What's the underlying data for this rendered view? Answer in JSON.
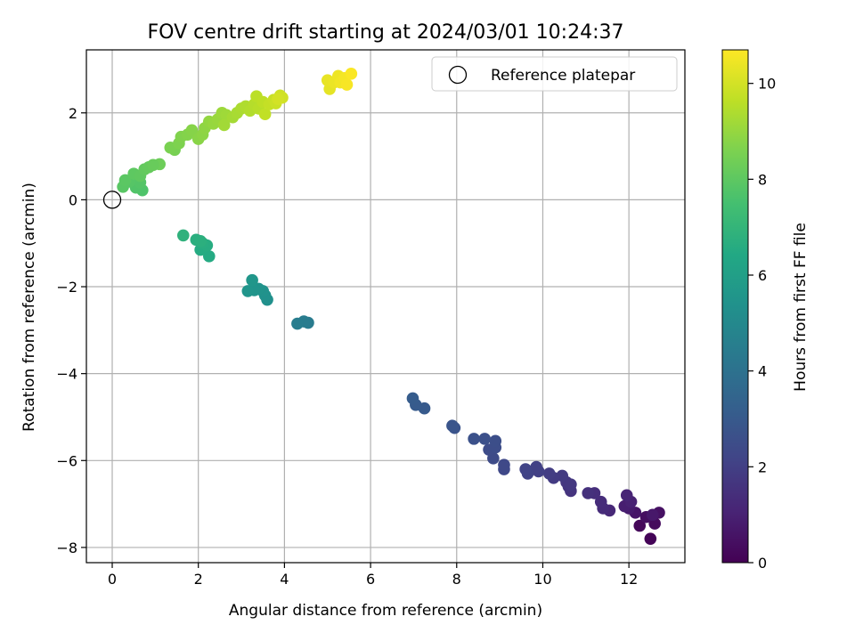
{
  "chart_data": {
    "type": "scatter",
    "title": "FOV centre drift starting at 2024/03/01 10:24:37",
    "xlabel": "Angular distance from reference (arcmin)",
    "ylabel": "Rotation from reference (arcmin)",
    "xlim": [
      -0.6,
      13.3
    ],
    "ylim": [
      -8.35,
      3.45
    ],
    "xticks": [
      0,
      2,
      4,
      6,
      8,
      10,
      12
    ],
    "yticks": [
      -8,
      -6,
      -4,
      -2,
      0,
      2
    ],
    "grid": true,
    "legend": {
      "placement": "top-right",
      "entries": [
        "Reference platepar"
      ]
    },
    "reference_point": {
      "x": 0,
      "y": 0
    },
    "colorbar": {
      "label": "Hours from first FF file",
      "range": [
        0,
        10.7
      ],
      "ticks": [
        0,
        2,
        4,
        6,
        8,
        10
      ],
      "colormap": "viridis"
    },
    "points": [
      {
        "x": 12.5,
        "y": -7.8,
        "c": 0.1
      },
      {
        "x": 12.25,
        "y": -7.5,
        "c": 0.2
      },
      {
        "x": 12.6,
        "y": -7.45,
        "c": 0.3
      },
      {
        "x": 12.4,
        "y": -7.3,
        "c": 0.4
      },
      {
        "x": 12.7,
        "y": -7.2,
        "c": 0.5
      },
      {
        "x": 12.15,
        "y": -7.2,
        "c": 0.6
      },
      {
        "x": 12.55,
        "y": -7.25,
        "c": 0.7
      },
      {
        "x": 12.0,
        "y": -7.1,
        "c": 0.8
      },
      {
        "x": 11.9,
        "y": -7.05,
        "c": 0.9
      },
      {
        "x": 12.05,
        "y": -6.95,
        "c": 1.0
      },
      {
        "x": 11.95,
        "y": -6.8,
        "c": 1.1
      },
      {
        "x": 11.55,
        "y": -7.15,
        "c": 1.2
      },
      {
        "x": 11.4,
        "y": -7.1,
        "c": 1.3
      },
      {
        "x": 11.35,
        "y": -6.95,
        "c": 1.35
      },
      {
        "x": 11.2,
        "y": -6.75,
        "c": 1.4
      },
      {
        "x": 11.05,
        "y": -6.75,
        "c": 1.5
      },
      {
        "x": 10.65,
        "y": -6.7,
        "c": 1.6
      },
      {
        "x": 10.6,
        "y": -6.6,
        "c": 1.65
      },
      {
        "x": 10.55,
        "y": -6.5,
        "c": 1.7
      },
      {
        "x": 10.65,
        "y": -6.55,
        "c": 1.75
      },
      {
        "x": 10.45,
        "y": -6.35,
        "c": 1.8
      },
      {
        "x": 10.25,
        "y": -6.4,
        "c": 1.85
      },
      {
        "x": 10.15,
        "y": -6.3,
        "c": 1.9
      },
      {
        "x": 9.9,
        "y": -6.25,
        "c": 2.0
      },
      {
        "x": 9.85,
        "y": -6.15,
        "c": 2.05
      },
      {
        "x": 9.65,
        "y": -6.3,
        "c": 2.1
      },
      {
        "x": 9.6,
        "y": -6.2,
        "c": 2.15
      },
      {
        "x": 9.1,
        "y": -6.2,
        "c": 2.3
      },
      {
        "x": 9.1,
        "y": -6.1,
        "c": 2.35
      },
      {
        "x": 8.85,
        "y": -5.95,
        "c": 2.4
      },
      {
        "x": 8.75,
        "y": -5.75,
        "c": 2.45
      },
      {
        "x": 8.9,
        "y": -5.7,
        "c": 2.5
      },
      {
        "x": 8.9,
        "y": -5.55,
        "c": 2.55
      },
      {
        "x": 8.65,
        "y": -5.5,
        "c": 2.6
      },
      {
        "x": 8.4,
        "y": -5.5,
        "c": 2.65
      },
      {
        "x": 7.95,
        "y": -5.25,
        "c": 2.75
      },
      {
        "x": 7.9,
        "y": -5.2,
        "c": 2.8
      },
      {
        "x": 7.25,
        "y": -4.8,
        "c": 3.0
      },
      {
        "x": 7.05,
        "y": -4.72,
        "c": 3.05
      },
      {
        "x": 6.98,
        "y": -4.57,
        "c": 3.1
      },
      {
        "x": 4.55,
        "y": -2.83,
        "c": 4.4
      },
      {
        "x": 4.45,
        "y": -2.8,
        "c": 4.45
      },
      {
        "x": 4.3,
        "y": -2.85,
        "c": 4.5
      },
      {
        "x": 3.6,
        "y": -2.3,
        "c": 5.3
      },
      {
        "x": 3.55,
        "y": -2.2,
        "c": 5.35
      },
      {
        "x": 3.5,
        "y": -2.1,
        "c": 5.4
      },
      {
        "x": 3.4,
        "y": -2.05,
        "c": 5.45
      },
      {
        "x": 3.3,
        "y": -2.08,
        "c": 5.5
      },
      {
        "x": 3.15,
        "y": -2.1,
        "c": 5.55
      },
      {
        "x": 3.25,
        "y": -1.85,
        "c": 5.6
      },
      {
        "x": 2.25,
        "y": -1.3,
        "c": 6.5
      },
      {
        "x": 2.05,
        "y": -1.15,
        "c": 6.55
      },
      {
        "x": 2.2,
        "y": -1.05,
        "c": 6.6
      },
      {
        "x": 2.1,
        "y": -1.0,
        "c": 6.65
      },
      {
        "x": 1.95,
        "y": -0.92,
        "c": 6.7
      },
      {
        "x": 2.05,
        "y": -0.95,
        "c": 6.75
      },
      {
        "x": 1.65,
        "y": -0.82,
        "c": 6.85
      },
      {
        "x": 0.7,
        "y": 0.22,
        "c": 7.7
      },
      {
        "x": 0.55,
        "y": 0.28,
        "c": 7.75
      },
      {
        "x": 0.65,
        "y": 0.4,
        "c": 7.8
      },
      {
        "x": 0.4,
        "y": 0.42,
        "c": 7.85
      },
      {
        "x": 0.25,
        "y": 0.3,
        "c": 7.9
      },
      {
        "x": 0.3,
        "y": 0.45,
        "c": 7.95
      },
      {
        "x": 0.5,
        "y": 0.6,
        "c": 8.0
      },
      {
        "x": 0.65,
        "y": 0.55,
        "c": 8.05
      },
      {
        "x": 0.75,
        "y": 0.7,
        "c": 8.1
      },
      {
        "x": 0.85,
        "y": 0.75,
        "c": 8.15
      },
      {
        "x": 1.1,
        "y": 0.82,
        "c": 8.3
      },
      {
        "x": 0.95,
        "y": 0.8,
        "c": 8.2
      },
      {
        "x": 1.45,
        "y": 1.15,
        "c": 8.5
      },
      {
        "x": 1.35,
        "y": 1.2,
        "c": 8.55
      },
      {
        "x": 1.55,
        "y": 1.3,
        "c": 8.6
      },
      {
        "x": 1.6,
        "y": 1.45,
        "c": 8.65
      },
      {
        "x": 1.75,
        "y": 1.5,
        "c": 8.7
      },
      {
        "x": 1.85,
        "y": 1.6,
        "c": 8.75
      },
      {
        "x": 2.0,
        "y": 1.4,
        "c": 8.8
      },
      {
        "x": 2.1,
        "y": 1.5,
        "c": 8.85
      },
      {
        "x": 2.15,
        "y": 1.65,
        "c": 8.9
      },
      {
        "x": 2.25,
        "y": 1.8,
        "c": 8.95
      },
      {
        "x": 2.35,
        "y": 1.75,
        "c": 9.0
      },
      {
        "x": 2.45,
        "y": 1.85,
        "c": 9.05
      },
      {
        "x": 2.55,
        "y": 2.0,
        "c": 9.1
      },
      {
        "x": 2.65,
        "y": 1.95,
        "c": 9.15
      },
      {
        "x": 2.6,
        "y": 1.72,
        "c": 9.2
      },
      {
        "x": 2.8,
        "y": 1.9,
        "c": 9.25
      },
      {
        "x": 2.9,
        "y": 2.0,
        "c": 9.3
      },
      {
        "x": 3.0,
        "y": 2.1,
        "c": 9.35
      },
      {
        "x": 3.1,
        "y": 2.15,
        "c": 9.4
      },
      {
        "x": 3.2,
        "y": 2.05,
        "c": 9.45
      },
      {
        "x": 3.3,
        "y": 2.2,
        "c": 9.5
      },
      {
        "x": 3.4,
        "y": 2.1,
        "c": 9.55
      },
      {
        "x": 3.35,
        "y": 2.38,
        "c": 9.6
      },
      {
        "x": 3.5,
        "y": 2.25,
        "c": 9.65
      },
      {
        "x": 3.55,
        "y": 1.97,
        "c": 9.7
      },
      {
        "x": 3.65,
        "y": 2.2,
        "c": 9.75
      },
      {
        "x": 3.75,
        "y": 2.3,
        "c": 9.8
      },
      {
        "x": 3.8,
        "y": 2.22,
        "c": 9.85
      },
      {
        "x": 3.9,
        "y": 2.4,
        "c": 9.9
      },
      {
        "x": 3.95,
        "y": 2.35,
        "c": 9.95
      },
      {
        "x": 3.85,
        "y": 2.32,
        "c": 10.0
      },
      {
        "x": 5.05,
        "y": 2.55,
        "c": 10.3
      },
      {
        "x": 5.0,
        "y": 2.75,
        "c": 10.35
      },
      {
        "x": 5.15,
        "y": 2.7,
        "c": 10.4
      },
      {
        "x": 5.25,
        "y": 2.85,
        "c": 10.45
      },
      {
        "x": 5.3,
        "y": 2.7,
        "c": 10.5
      },
      {
        "x": 5.4,
        "y": 2.8,
        "c": 10.55
      },
      {
        "x": 5.45,
        "y": 2.65,
        "c": 10.6
      },
      {
        "x": 5.55,
        "y": 2.9,
        "c": 10.65
      }
    ]
  }
}
